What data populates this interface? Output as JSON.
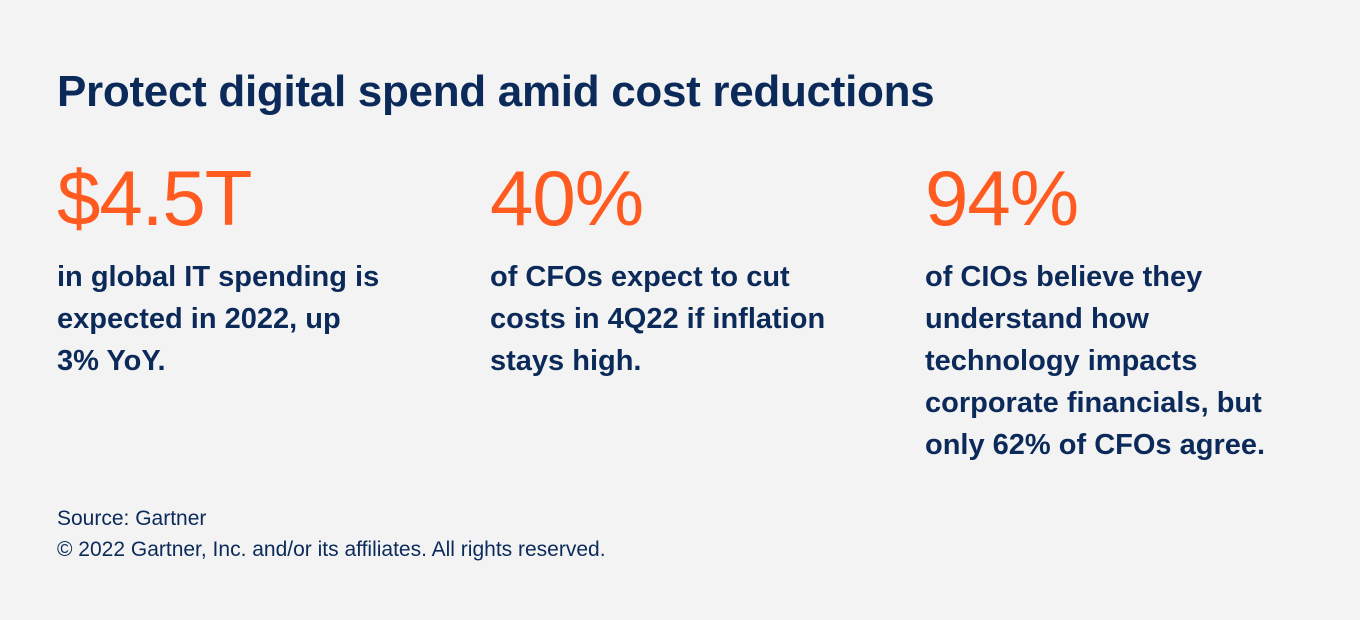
{
  "title": "Protect digital spend amid cost reductions",
  "stats": [
    {
      "value": "$4.5T",
      "lines": [
        "in global IT spending is",
        "expected in 2022, up",
        "3% YoY."
      ]
    },
    {
      "value": "40%",
      "lines": [
        "of CFOs expect to cut",
        "costs in 4Q22 if inflation",
        "stays high."
      ]
    },
    {
      "value": "94%",
      "lines": [
        "of CIOs believe they",
        "understand how",
        "technology impacts",
        "corporate financials, but",
        "only 62% of CFOs agree."
      ]
    }
  ],
  "footer": {
    "source": "Source: Gartner",
    "copyright": "© 2022 Gartner, Inc. and/or its affiliates. All rights reserved."
  },
  "colors": {
    "background": "#f3f3f3",
    "navy": "#0b2a5a",
    "accent_orange": "#ff5a1f"
  }
}
